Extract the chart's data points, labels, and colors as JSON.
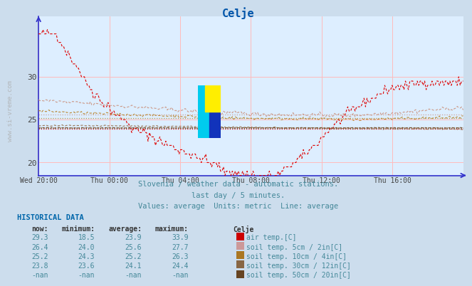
{
  "title": "Celje",
  "title_color": "#0055aa",
  "bg_color": "#ccdded",
  "plot_bg_color": "#ddeeff",
  "grid_color": "#ffbbbb",
  "axis_color": "#3333cc",
  "watermark": "www.si-vreme.com",
  "subtitle1": "Slovenia / weather data - automatic stations.",
  "subtitle2": "last day / 5 minutes.",
  "subtitle3": "Values: average  Units: metric  Line: average",
  "xticklabels": [
    "Wed 20:00",
    "Thu 00:00",
    "Thu 04:00",
    "Thu 08:00",
    "Thu 12:00",
    "Thu 16:00"
  ],
  "ylim_min": 18.5,
  "ylim_max": 37.0,
  "yticks": [
    20,
    25,
    30
  ],
  "avg_lines": [
    {
      "val": 23.9,
      "color": "#dd0000"
    },
    {
      "val": 25.6,
      "color": "#cc9988"
    },
    {
      "val": 25.2,
      "color": "#bb8833"
    },
    {
      "val": 24.1,
      "color": "#997755"
    },
    {
      "val": 24.05,
      "color": "#775533"
    }
  ],
  "series_colors": [
    "#dd0000",
    "#cc9988",
    "#bb8833",
    "#997755",
    "#775533"
  ],
  "legend_data": [
    {
      "now": "29.3",
      "min": "18.5",
      "avg": "23.9",
      "max": "33.9",
      "swatch": "#cc0000",
      "label": "air temp.[C]"
    },
    {
      "now": "26.4",
      "min": "24.0",
      "avg": "25.6",
      "max": "27.7",
      "swatch": "#cc9999",
      "label": "soil temp. 5cm / 2in[C]"
    },
    {
      "now": "25.2",
      "min": "24.3",
      "avg": "25.2",
      "max": "26.3",
      "swatch": "#aa7722",
      "label": "soil temp. 10cm / 4in[C]"
    },
    {
      "now": "23.8",
      "min": "23.6",
      "avg": "24.1",
      "max": "24.4",
      "swatch": "#886644",
      "label": "soil temp. 30cm / 12in[C]"
    },
    {
      "now": "-nan",
      "min": "-nan",
      "avg": "-nan",
      "max": "-nan",
      "swatch": "#664422",
      "label": "soil temp. 50cm / 20in[C]"
    }
  ]
}
